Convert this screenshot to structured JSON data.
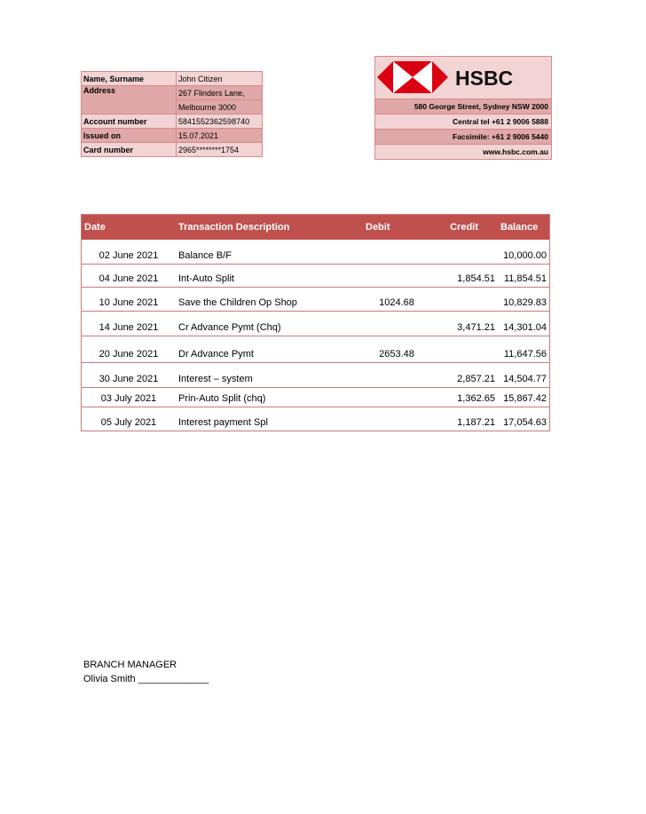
{
  "customer": {
    "rows": [
      {
        "label": "Name, Surname",
        "value": "John Citizen"
      },
      {
        "label": "Address",
        "value": "267 Flinders Lane,",
        "value2": "Melbourne 3000"
      },
      {
        "label": "Account number",
        "value": "5841552362598740"
      },
      {
        "label": "Issued on",
        "value": "15.07.2021"
      },
      {
        "label": "Card number",
        "value": "2965********1754"
      }
    ]
  },
  "bank": {
    "name": "HSBC",
    "address": "580 George Street, Sydney NSW 2000",
    "tel": "Central tel +61 2 9006 5888",
    "fax": "Facsimile: +61 2 9006 5440",
    "web": "www.hsbc.com.au",
    "brand_color": "#db0011"
  },
  "transactions": {
    "headers": [
      "Date",
      "Transaction Description",
      "Debit",
      "Credit",
      "Balance"
    ],
    "rows": [
      [
        "02 June 2021",
        "Balance B/F",
        "",
        "",
        "10,000.00"
      ],
      [
        "04 June 2021",
        "Int-Auto Split",
        "",
        "1,854.51",
        "11,854.51"
      ],
      [
        "10 June 2021",
        "Save the Children Op Shop",
        "1024.68",
        "",
        "10,829.83"
      ],
      [
        "14 June 2021",
        "Cr Advance Pymt (Chq)",
        "",
        "3,471.21",
        "14,301.04"
      ],
      [
        "20 June 2021",
        "Dr Advance Pymt",
        "2653.48",
        "",
        "11,647.56"
      ],
      [
        "30 June 2021",
        "Interest – system",
        "",
        "2,857.21",
        "14,504.77"
      ],
      [
        "03 July 2021",
        "Prin-Auto Split (chq)",
        "",
        "1,362.65",
        "15,867.42"
      ],
      [
        "05 July 2021",
        "Interest payment Spl",
        "",
        "1,187.21",
        "17,054.63"
      ]
    ]
  },
  "signature": {
    "title": "BRANCH MANAGER",
    "name": "Olivia Smith",
    "line": "_____________"
  }
}
